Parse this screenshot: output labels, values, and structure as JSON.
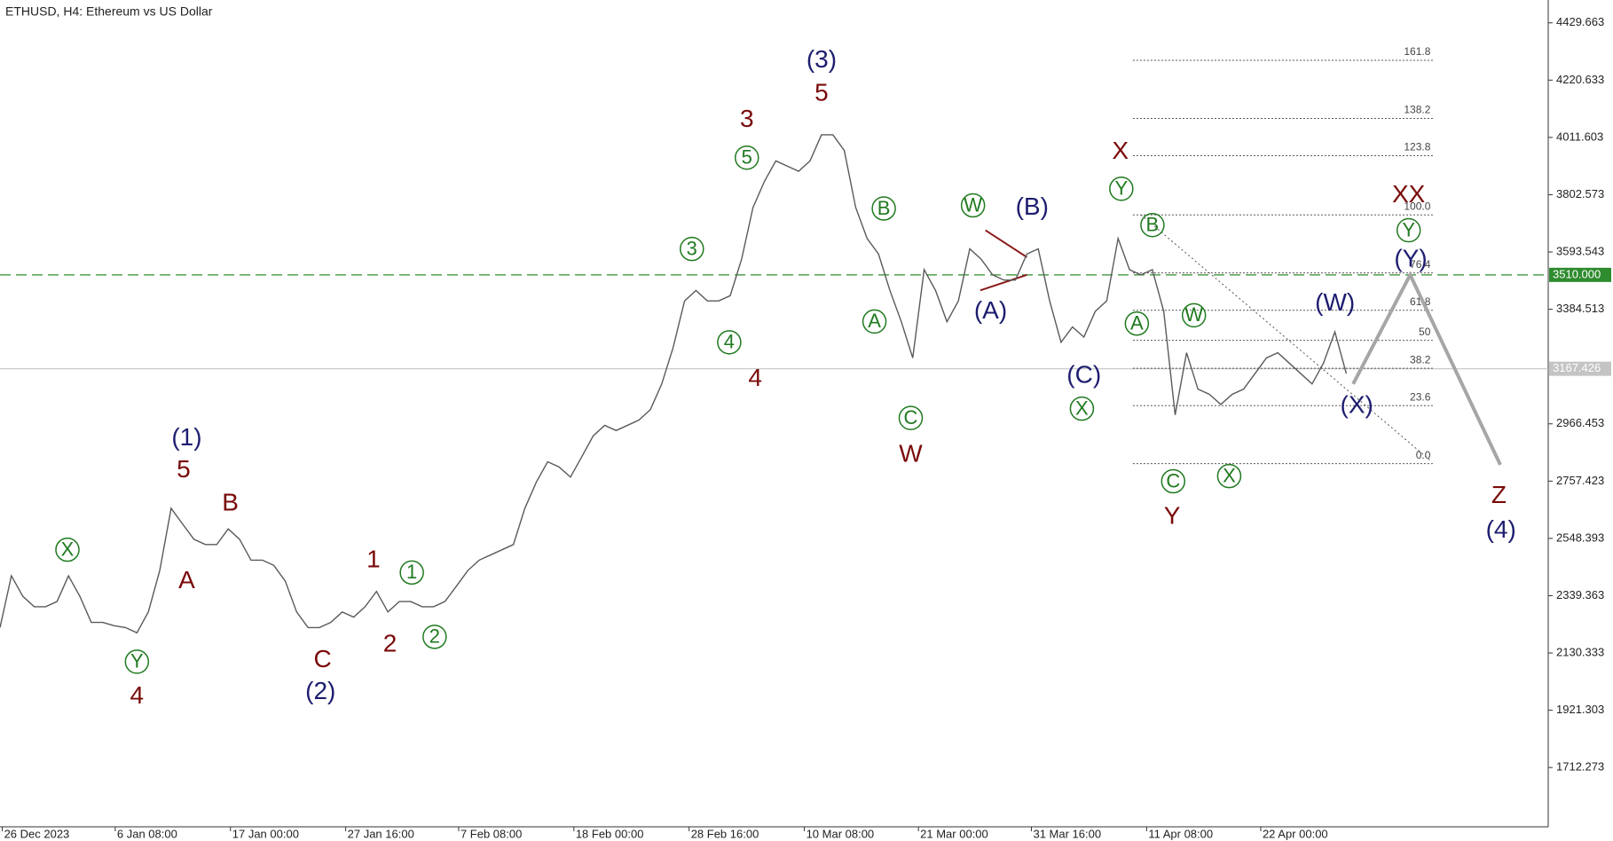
{
  "chart_data": {
    "type": "line",
    "title": "ETHUSD, H4:  Ethereum vs US Dollar",
    "x": [
      0,
      1,
      2,
      3,
      4,
      5,
      6,
      7,
      8,
      9,
      10,
      11,
      12,
      13,
      14,
      15,
      16,
      17,
      18,
      19,
      20,
      21,
      22,
      23,
      24,
      25,
      26,
      27,
      28,
      29,
      30,
      31,
      32,
      33,
      34,
      35,
      36,
      37,
      38,
      39,
      40,
      41,
      42,
      43,
      44,
      45,
      46,
      47,
      48,
      49,
      50,
      51,
      52,
      53,
      54,
      55,
      56,
      57,
      58,
      59,
      60,
      61,
      62,
      63,
      64,
      65,
      66,
      67,
      68,
      69,
      70,
      71,
      72,
      73,
      74,
      75,
      76,
      77,
      78,
      79,
      80,
      81,
      82,
      83,
      84,
      85,
      86,
      87,
      88,
      89,
      90,
      91,
      92,
      93,
      94,
      95,
      96,
      97,
      98,
      99,
      100,
      101,
      102,
      103,
      104,
      105,
      106,
      107,
      108,
      109,
      110,
      111,
      112,
      113,
      114,
      115,
      116,
      117,
      118
    ],
    "values": [
      2223,
      2412,
      2337,
      2299,
      2299,
      2318,
      2412,
      2337,
      2242,
      2242,
      2230,
      2223,
      2204,
      2280,
      2431,
      2658,
      2601,
      2545,
      2526,
      2526,
      2583,
      2545,
      2469,
      2469,
      2450,
      2393,
      2280,
      2223,
      2223,
      2242,
      2280,
      2261,
      2299,
      2355,
      2280,
      2318,
      2318,
      2299,
      2299,
      2318,
      2374,
      2431,
      2469,
      2488,
      2507,
      2526,
      2658,
      2753,
      2828,
      2809,
      2772,
      2847,
      2923,
      2961,
      2942,
      2961,
      2980,
      3018,
      3112,
      3245,
      3415,
      3453,
      3415,
      3415,
      3434,
      3567,
      3756,
      3851,
      3926,
      3907,
      3888,
      3926,
      4021,
      4021,
      3964,
      3756,
      3643,
      3586,
      3453,
      3339,
      3207,
      3529,
      3453,
      3339,
      3415,
      3605,
      3567,
      3510,
      3491,
      3491,
      3586,
      3605,
      3415,
      3264,
      3320,
      3283,
      3377,
      3415,
      3643,
      3529,
      3510,
      3529,
      3377,
      2999,
      3226,
      3093,
      3074,
      3037,
      3074,
      3093,
      3150,
      3207,
      3226,
      3188,
      3150,
      3112,
      3188,
      3302,
      3150
    ],
    "color": "#5a5a5a",
    "xlim": [
      0,
      135.7
    ],
    "ylim": [
      1496,
      4513
    ],
    "yticks": [
      4429.663,
      4220.633,
      4011.603,
      3802.573,
      3593.543,
      3384.513,
      2966.453,
      2757.423,
      2548.393,
      2339.363,
      2130.333,
      1921.303,
      1712.273
    ],
    "xticks": [
      {
        "value": 0.2,
        "label": "26 Dec 2023"
      },
      {
        "value": 10.1,
        "label": "6 Jan 08:00"
      },
      {
        "value": 20.2,
        "label": "17 Jan 00:00"
      },
      {
        "value": 30.3,
        "label": "27 Jan 16:00"
      },
      {
        "value": 40.2,
        "label": "7 Feb 08:00"
      },
      {
        "value": 50.3,
        "label": "18 Feb 00:00"
      },
      {
        "value": 60.4,
        "label": "28 Feb 16:00"
      },
      {
        "value": 70.5,
        "label": "10 Mar 08:00"
      },
      {
        "value": 80.5,
        "label": "21 Mar 00:00"
      },
      {
        "value": 90.4,
        "label": "31 Mar 16:00"
      },
      {
        "value": 100.5,
        "label": "11 Apr 08:00"
      },
      {
        "value": 110.5,
        "label": "22 Apr 00:00"
      }
    ],
    "hlines": [
      {
        "value": 3510,
        "label": "3510.000",
        "color": "#2e8b2e"
      },
      {
        "value": 3167.426,
        "label": "3167.426",
        "color": "#c4c4c4"
      }
    ],
    "fibonacci": {
      "x": [
        99.3,
        125.7
      ],
      "levels": [
        {
          "label": "161.8",
          "price": 4293
        },
        {
          "label": "138.2",
          "price": 4081
        },
        {
          "label": "123.8",
          "price": 3945
        },
        {
          "label": "100.0",
          "price": 3729
        },
        {
          "label": "76.4",
          "price": 3517
        },
        {
          "label": "61.8",
          "price": 3381
        },
        {
          "label": "50",
          "price": 3271
        },
        {
          "label": "38.2",
          "price": 3169
        },
        {
          "label": "23.6",
          "price": 3033
        },
        {
          "label": "0.0",
          "price": 2821
        }
      ]
    },
    "trendline": {
      "x": [
        100,
        125.5
      ],
      "values": [
        3729,
        2828
      ]
    },
    "projection": {
      "x": [
        118.6,
        123.6,
        131.5
      ],
      "values": [
        3112,
        3510,
        2817
      ],
      "color": "#a6a6a6"
    },
    "wave_labels": [
      {
        "text": "(1)",
        "style": "navy"
      },
      {
        "text": "(2)",
        "style": "navy"
      },
      {
        "text": "(3)",
        "style": "navy"
      },
      {
        "text": "(A)",
        "style": "navy"
      },
      {
        "text": "(B)",
        "style": "navy"
      },
      {
        "text": "(C)",
        "style": "navy"
      },
      {
        "text": "(W)",
        "style": "navy"
      },
      {
        "text": "(Y)",
        "style": "navy"
      },
      {
        "text": "(X)",
        "style": "navy"
      },
      {
        "text": "(4)",
        "style": "navy"
      },
      {
        "text": "5",
        "style": "red"
      },
      {
        "text": "4",
        "style": "red"
      },
      {
        "text": "A",
        "style": "red"
      },
      {
        "text": "B",
        "style": "red"
      },
      {
        "text": "C",
        "style": "red"
      },
      {
        "text": "1",
        "style": "red"
      },
      {
        "text": "2",
        "style": "red"
      },
      {
        "text": "3",
        "style": "red"
      },
      {
        "text": "5",
        "style": "red"
      },
      {
        "text": "4",
        "style": "red"
      },
      {
        "text": "W",
        "style": "red"
      },
      {
        "text": "X",
        "style": "red"
      },
      {
        "text": "Y",
        "style": "red"
      },
      {
        "text": "XX",
        "style": "red"
      },
      {
        "text": "Z",
        "style": "red"
      },
      {
        "text": "X",
        "style": "green"
      },
      {
        "text": "Y",
        "style": "green"
      },
      {
        "text": "1",
        "style": "green"
      },
      {
        "text": "2",
        "style": "green"
      },
      {
        "text": "3",
        "style": "green"
      },
      {
        "text": "4",
        "style": "green"
      },
      {
        "text": "5",
        "style": "green"
      },
      {
        "text": "B",
        "style": "green"
      },
      {
        "text": "A",
        "style": "green"
      },
      {
        "text": "C",
        "style": "green"
      },
      {
        "text": "W",
        "style": "green"
      },
      {
        "text": "Y",
        "style": "green"
      },
      {
        "text": "B",
        "style": "green"
      },
      {
        "text": "A",
        "style": "green"
      },
      {
        "text": "W",
        "style": "green"
      },
      {
        "text": "X",
        "style": "green"
      },
      {
        "text": "C",
        "style": "green"
      },
      {
        "text": "X",
        "style": "green"
      },
      {
        "text": "Y",
        "style": "green"
      }
    ]
  }
}
